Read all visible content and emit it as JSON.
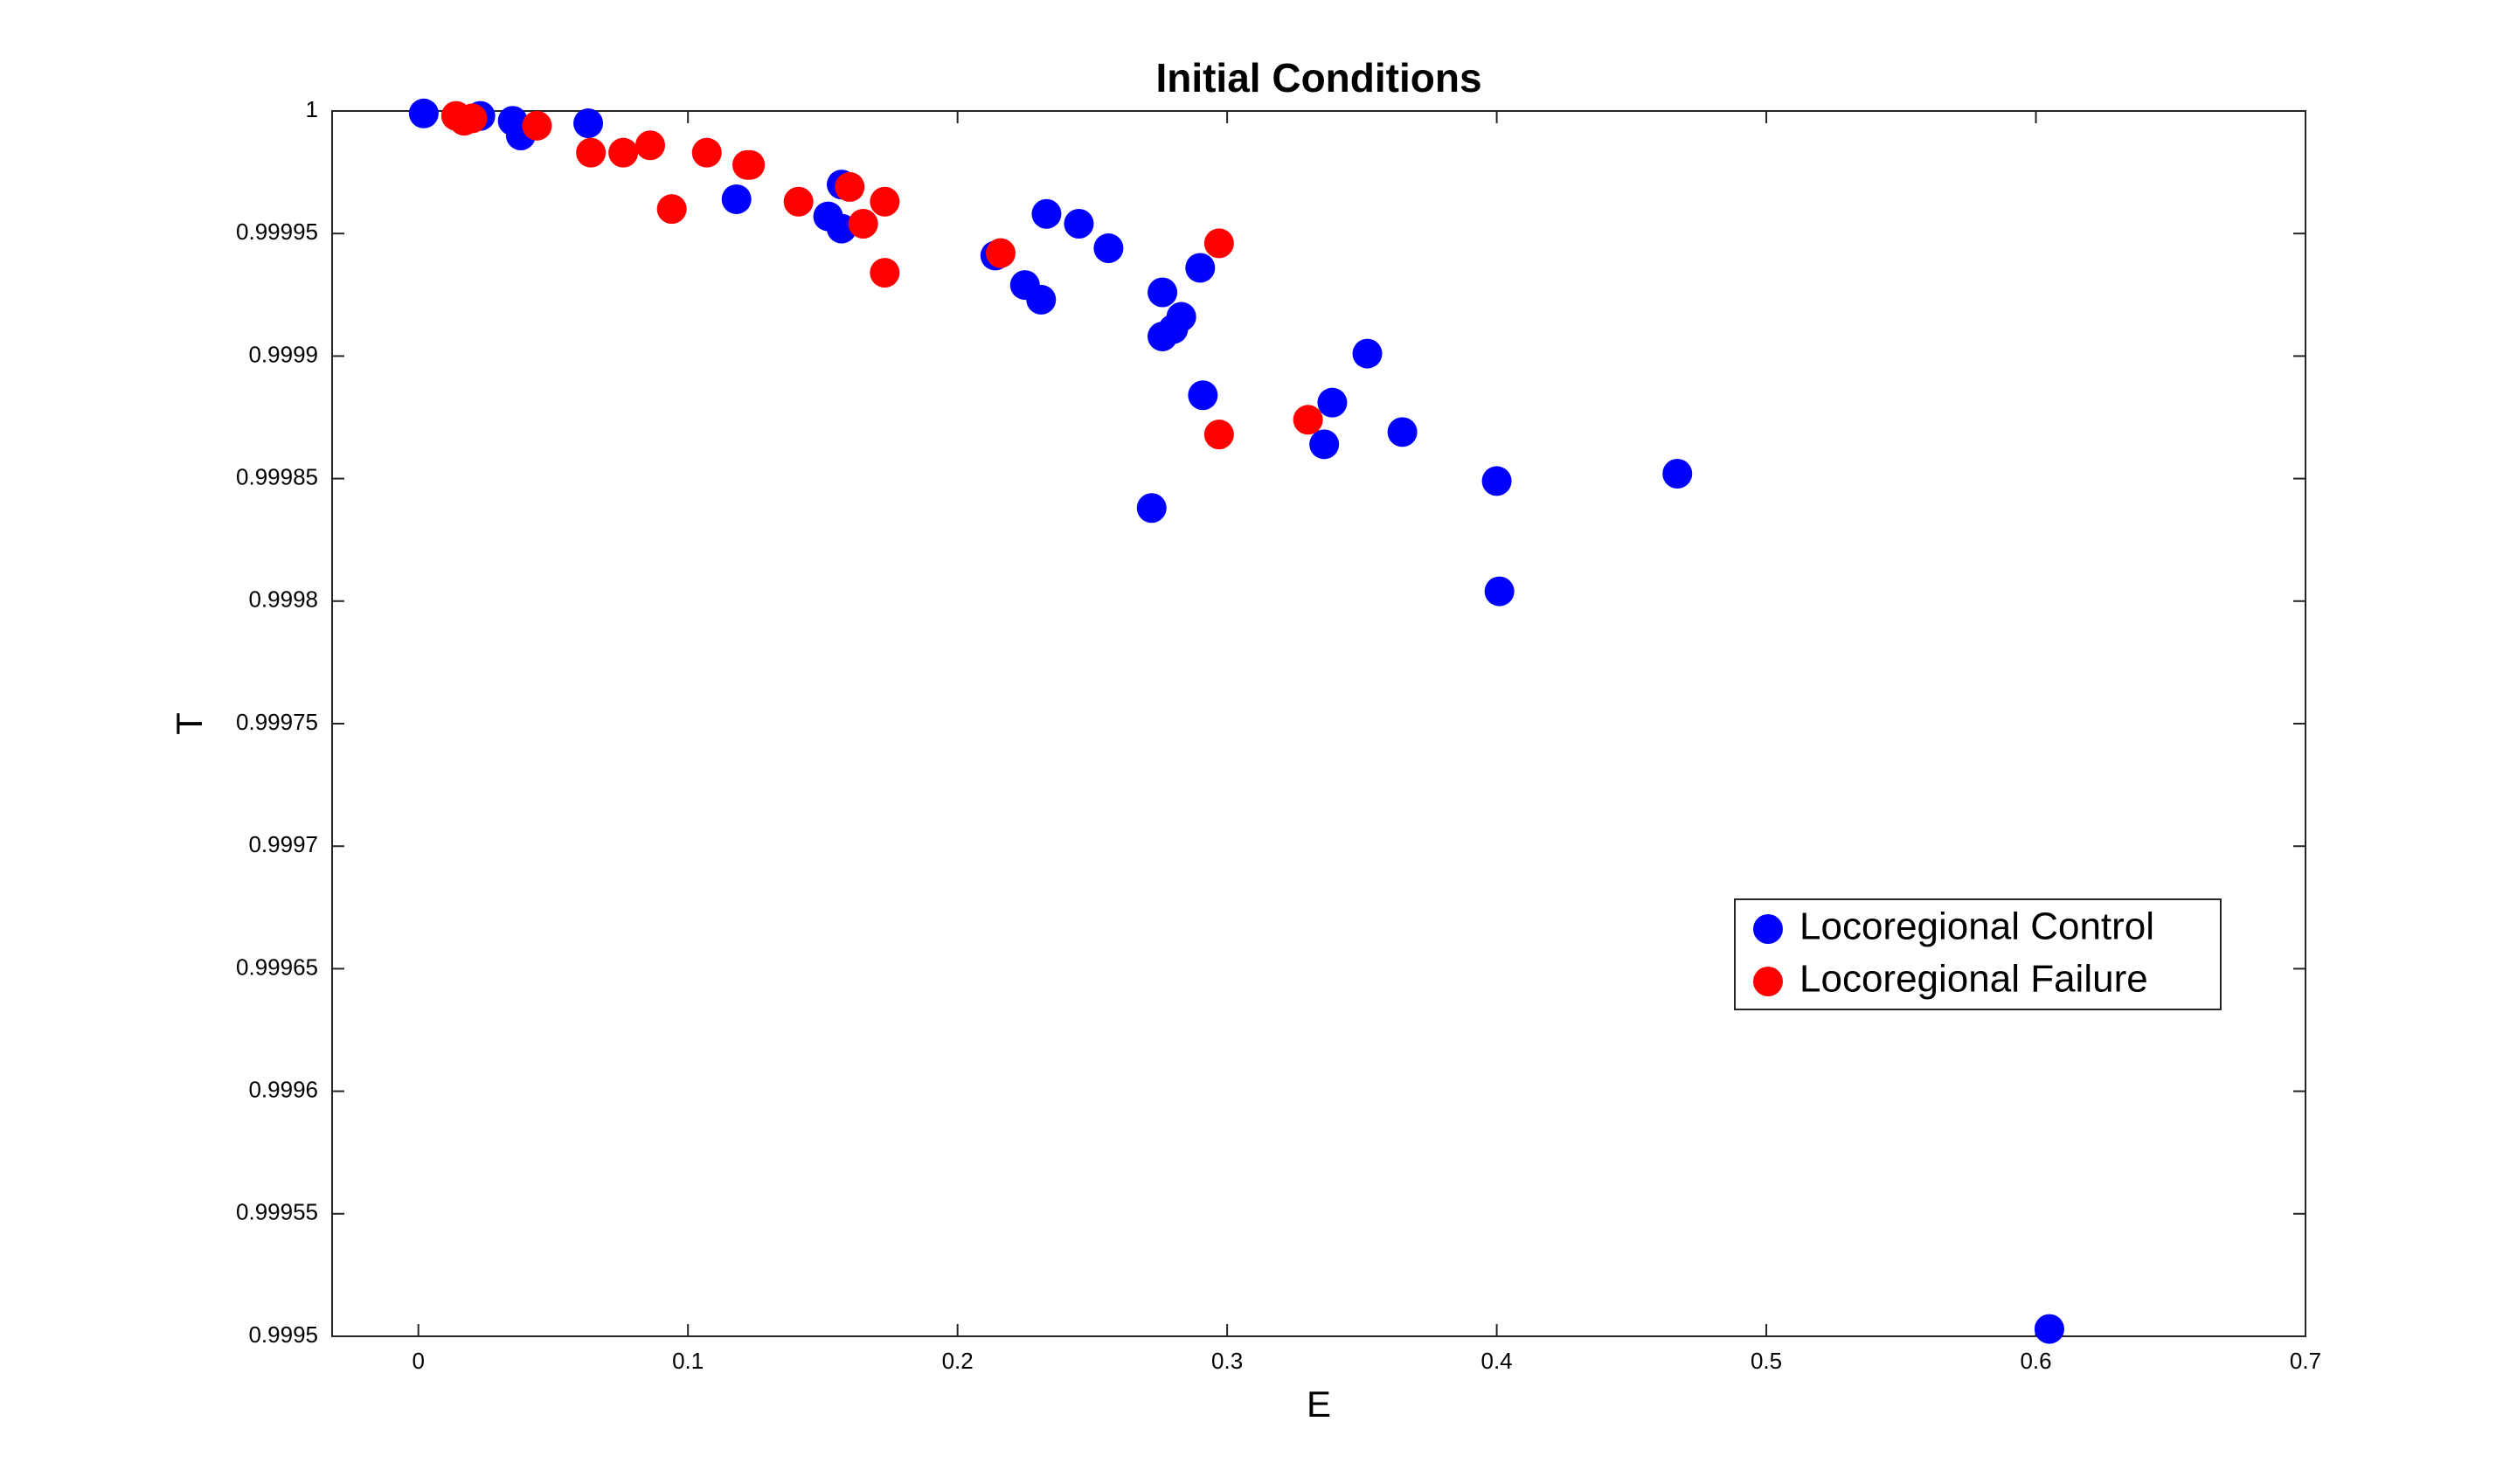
{
  "chart_data": {
    "type": "scatter",
    "title": "Initial Conditions",
    "x_label": "E",
    "y_label": "T",
    "xlim": [
      -0.032,
      0.7
    ],
    "ylim": [
      0.9995,
      1
    ],
    "xticks": [
      0,
      0.1,
      0.2,
      0.3,
      0.4,
      0.5,
      0.6,
      0.7
    ],
    "yticks": [
      0.9995,
      0.99955,
      0.9996,
      0.99965,
      0.9997,
      0.99975,
      0.9998,
      0.99985,
      0.9999,
      0.99995,
      1
    ],
    "grid": false,
    "legend": "east",
    "series": [
      {
        "name": "Locoregional Control",
        "color": "#0000ff",
        "x": [
          0.002,
          0.023,
          0.035,
          0.038,
          0.063,
          0.118,
          0.152,
          0.157,
          0.157,
          0.214,
          0.225,
          0.231,
          0.233,
          0.245,
          0.256,
          0.276,
          0.276,
          0.28,
          0.283,
          0.29,
          0.291,
          0.272,
          0.336,
          0.339,
          0.352,
          0.365,
          0.4,
          0.401,
          0.467,
          0.605
        ],
        "values": [
          0.999999,
          0.999998,
          0.999996,
          0.99999,
          0.999995,
          0.999964,
          0.999957,
          0.99997,
          0.999952,
          0.999941,
          0.999929,
          0.999923,
          0.999958,
          0.999954,
          0.999944,
          0.999926,
          0.999908,
          0.999911,
          0.999916,
          0.999936,
          0.999884,
          0.999838,
          0.999864,
          0.999881,
          0.999901,
          0.999869,
          0.999849,
          0.999804,
          0.999852,
          0.999503
        ]
      },
      {
        "name": "Locoregional Failure",
        "color": "#ff0000",
        "x": [
          0.014,
          0.017,
          0.02,
          0.044,
          0.064,
          0.076,
          0.086,
          0.094,
          0.107,
          0.122,
          0.123,
          0.141,
          0.16,
          0.165,
          0.173,
          0.173,
          0.216,
          0.297,
          0.297,
          0.33
        ],
        "values": [
          0.999998,
          0.999996,
          0.999997,
          0.999994,
          0.999983,
          0.999983,
          0.999986,
          0.99996,
          0.999983,
          0.999978,
          0.999978,
          0.999963,
          0.999969,
          0.999954,
          0.999963,
          0.999934,
          0.999942,
          0.999946,
          0.999868,
          0.999874
        ]
      }
    ]
  }
}
